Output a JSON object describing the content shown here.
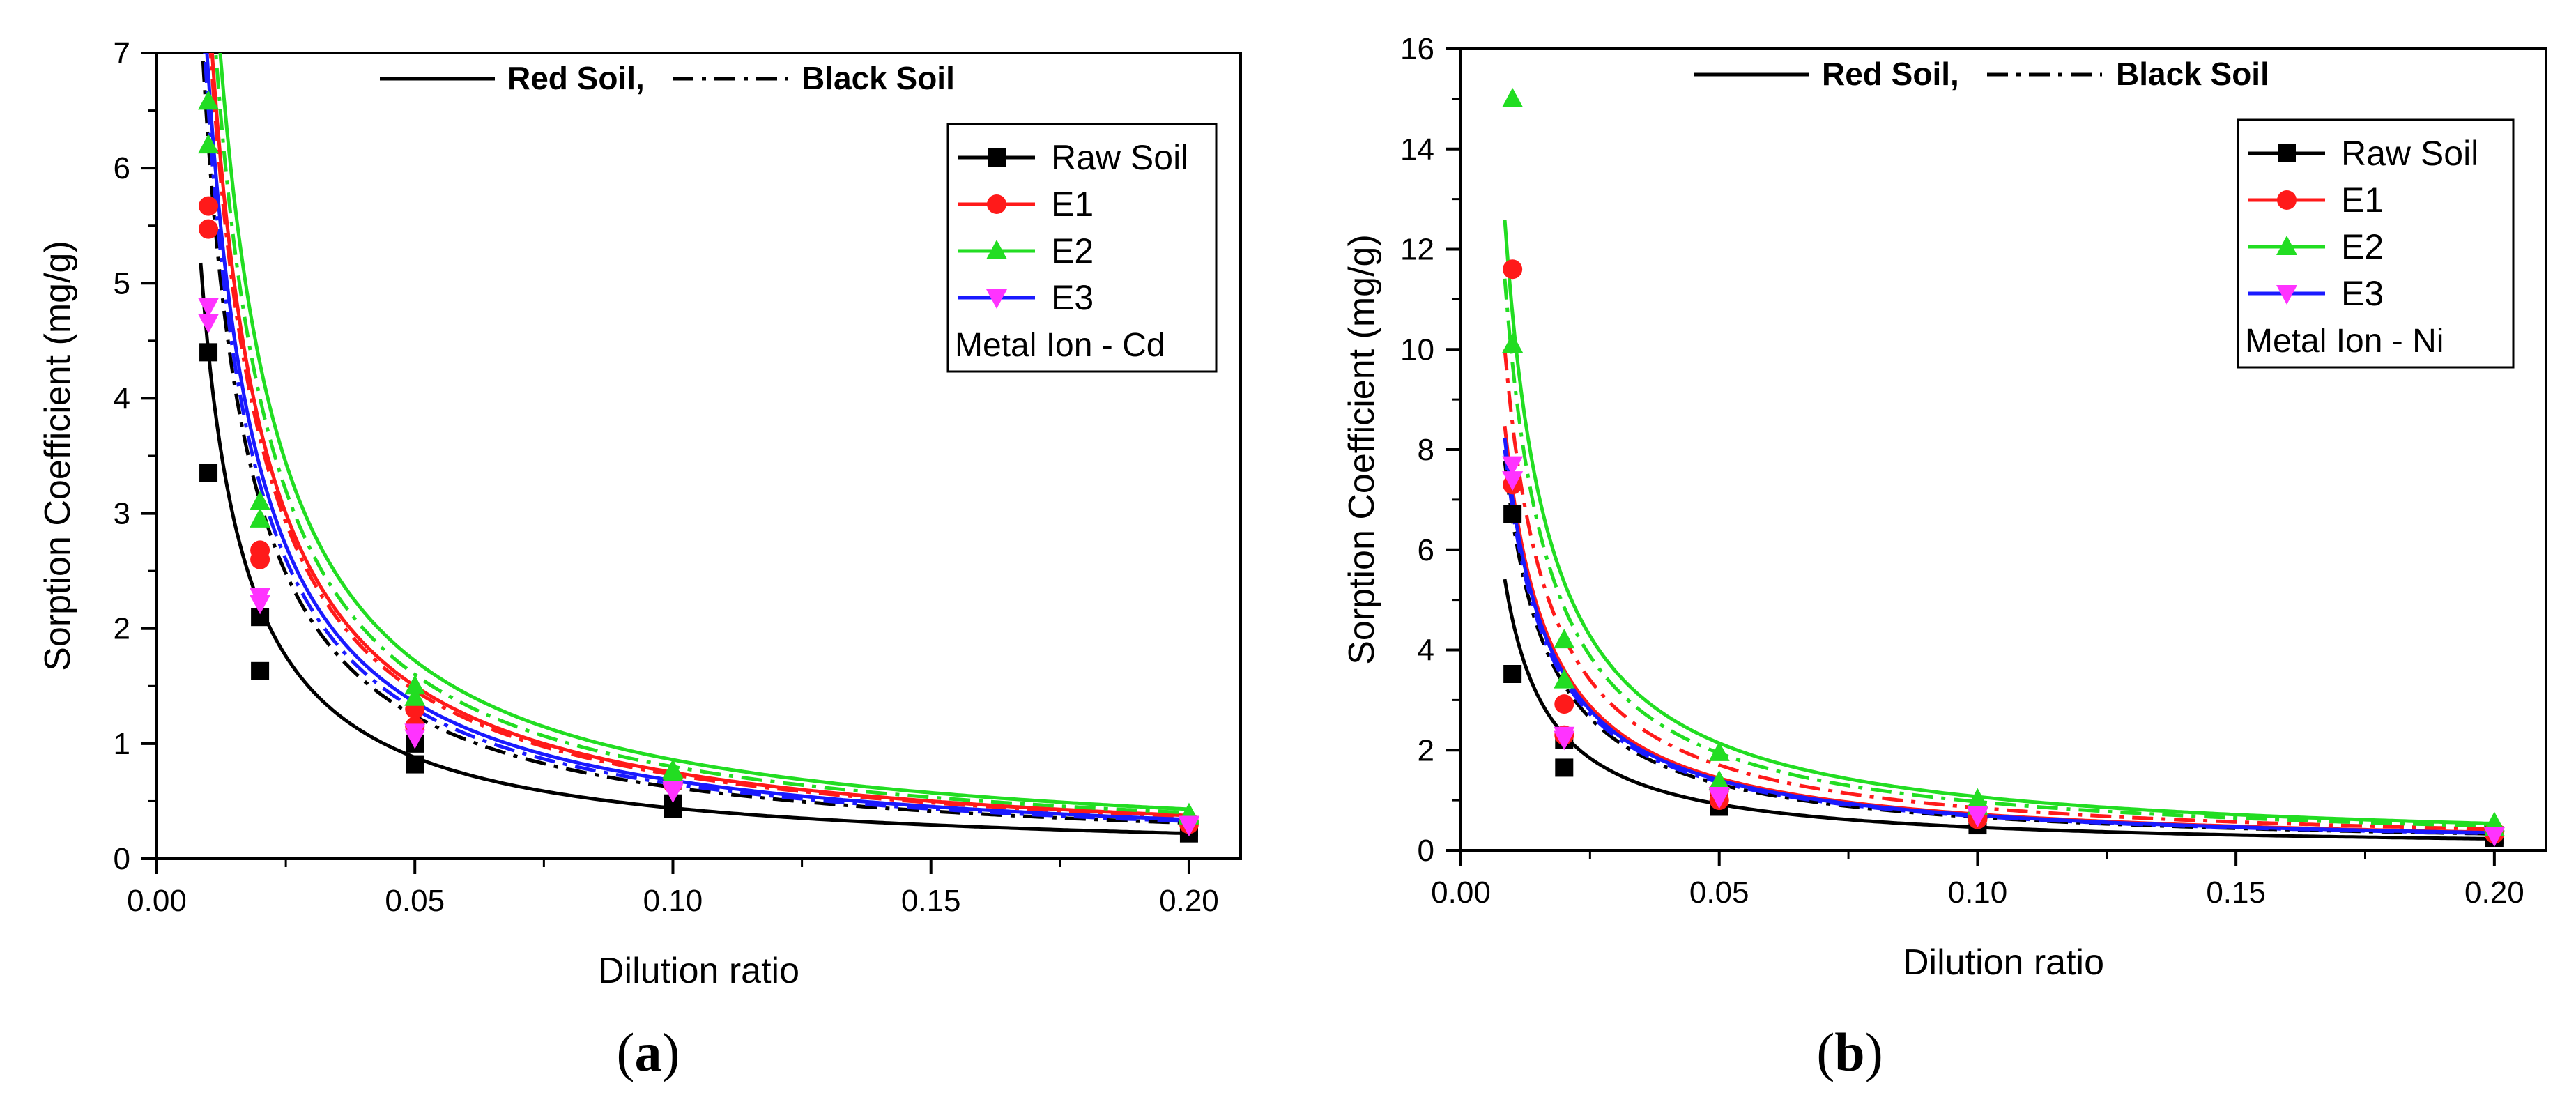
{
  "figure": {
    "red_soil_label": "Red Soil,",
    "black_soil_label": "Black Soil"
  },
  "colors": {
    "Raw Soil": "#000000",
    "E1": "#ff1a1a",
    "E2": "#22dd22",
    "E3": "#1a1aff",
    "E3_marker": "#ff33ff"
  },
  "chart_data": [
    {
      "type": "scatter",
      "panel_label": "a",
      "title": "",
      "xlabel": "Dilution ratio",
      "ylabel": "Sorption Coefficient (mg/g)",
      "xlim": [
        0,
        0.21
      ],
      "ylim": [
        0,
        7
      ],
      "xticks": [
        0.0,
        0.05,
        0.1,
        0.15,
        0.2
      ],
      "xtick_labels": [
        "0.00",
        "0.05",
        "0.10",
        "0.15",
        "0.20"
      ],
      "yticks": [
        0,
        1,
        2,
        3,
        4,
        5,
        6,
        7
      ],
      "ytick_labels": [
        "0",
        "1",
        "2",
        "3",
        "4",
        "5",
        "6",
        "7"
      ],
      "annotation": "Metal Ion - Cd",
      "legend": [
        "Raw Soil",
        "E1",
        "E2",
        "E3"
      ],
      "x": [
        0.01,
        0.02,
        0.05,
        0.1,
        0.2
      ],
      "series": [
        {
          "name": "Raw Soil",
          "soil": "Red Soil",
          "marker": "square",
          "values": [
            3.35,
            1.63,
            0.82,
            0.43,
            0.22
          ],
          "fit_k": 0.044
        },
        {
          "name": "Raw Soil",
          "soil": "Black Soil",
          "marker": "square",
          "values": [
            4.4,
            2.1,
            1.0,
            0.48,
            0.27
          ],
          "fit_k": 0.062
        },
        {
          "name": "E1",
          "soil": "Red Soil",
          "marker": "circle",
          "values": [
            5.67,
            2.6,
            1.15,
            0.65,
            0.3
          ],
          "fit_k": 0.075
        },
        {
          "name": "E1",
          "soil": "Black Soil",
          "marker": "circle",
          "values": [
            5.47,
            2.68,
            1.3,
            0.7,
            0.32
          ],
          "fit_k": 0.073
        },
        {
          "name": "E2",
          "soil": "Red Soil",
          "marker": "triangle",
          "values": [
            6.58,
            3.1,
            1.5,
            0.77,
            0.39
          ],
          "fit_k": 0.086
        },
        {
          "name": "E2",
          "soil": "Black Soil",
          "marker": "triangle",
          "values": [
            6.2,
            2.95,
            1.4,
            0.73,
            0.37
          ],
          "fit_k": 0.08
        },
        {
          "name": "E3",
          "soil": "Red Soil",
          "marker": "triangle-down",
          "values": [
            4.8,
            2.28,
            1.1,
            0.6,
            0.3
          ],
          "fit_k": 0.068
        },
        {
          "name": "E3",
          "soil": "Black Soil",
          "marker": "triangle-down",
          "values": [
            4.66,
            2.22,
            1.05,
            0.58,
            0.29
          ],
          "fit_k": 0.065
        }
      ]
    },
    {
      "type": "scatter",
      "panel_label": "b",
      "title": "",
      "xlabel": "Dilution ratio",
      "ylabel": "Sorption Coefficient (mg/g)",
      "xlim": [
        0,
        0.21
      ],
      "ylim": [
        0,
        16
      ],
      "xticks": [
        0.0,
        0.05,
        0.1,
        0.15,
        0.2
      ],
      "xtick_labels": [
        "0.00",
        "0.05",
        "0.10",
        "0.15",
        "0.20"
      ],
      "yticks": [
        0,
        2,
        4,
        6,
        8,
        10,
        12,
        14,
        16
      ],
      "ytick_labels": [
        "0",
        "2",
        "4",
        "6",
        "8",
        "10",
        "12",
        "14",
        "16"
      ],
      "annotation": "Metal Ion - Ni",
      "legend": [
        "Raw Soil",
        "E1",
        "E2",
        "E3"
      ],
      "x": [
        0.01,
        0.02,
        0.05,
        0.1,
        0.2
      ],
      "series": [
        {
          "name": "Raw Soil",
          "soil": "Red Soil",
          "marker": "square",
          "values": [
            3.52,
            1.65,
            0.87,
            0.5,
            0.25
          ],
          "fit_k": 0.046
        },
        {
          "name": "Raw Soil",
          "soil": "Black Soil",
          "marker": "square",
          "values": [
            6.72,
            2.2,
            1.05,
            0.62,
            0.3
          ],
          "fit_k": 0.066
        },
        {
          "name": "E1",
          "soil": "Red Soil",
          "marker": "circle",
          "values": [
            7.3,
            2.92,
            1.2,
            0.7,
            0.38
          ],
          "fit_k": 0.072
        },
        {
          "name": "E1",
          "soil": "Black Soil",
          "marker": "circle",
          "values": [
            11.6,
            2.3,
            1.0,
            0.62,
            0.33
          ],
          "fit_k": 0.085
        },
        {
          "name": "E2",
          "soil": "Red Soil",
          "marker": "triangle",
          "values": [
            10.1,
            4.2,
            1.95,
            1.02,
            0.55
          ],
          "fit_k": 0.107
        },
        {
          "name": "E2",
          "soil": "Black Soil",
          "marker": "triangle",
          "values": [
            15.0,
            3.4,
            1.38,
            0.88,
            0.45
          ],
          "fit_k": 0.097
        },
        {
          "name": "E3",
          "soil": "Red Soil",
          "marker": "triangle-down",
          "values": [
            7.7,
            2.3,
            1.1,
            0.72,
            0.3
          ],
          "fit_k": 0.07
        },
        {
          "name": "E3",
          "soil": "Black Soil",
          "marker": "triangle-down",
          "values": [
            7.4,
            2.22,
            1.05,
            0.68,
            0.29
          ],
          "fit_k": 0.068
        }
      ]
    }
  ]
}
